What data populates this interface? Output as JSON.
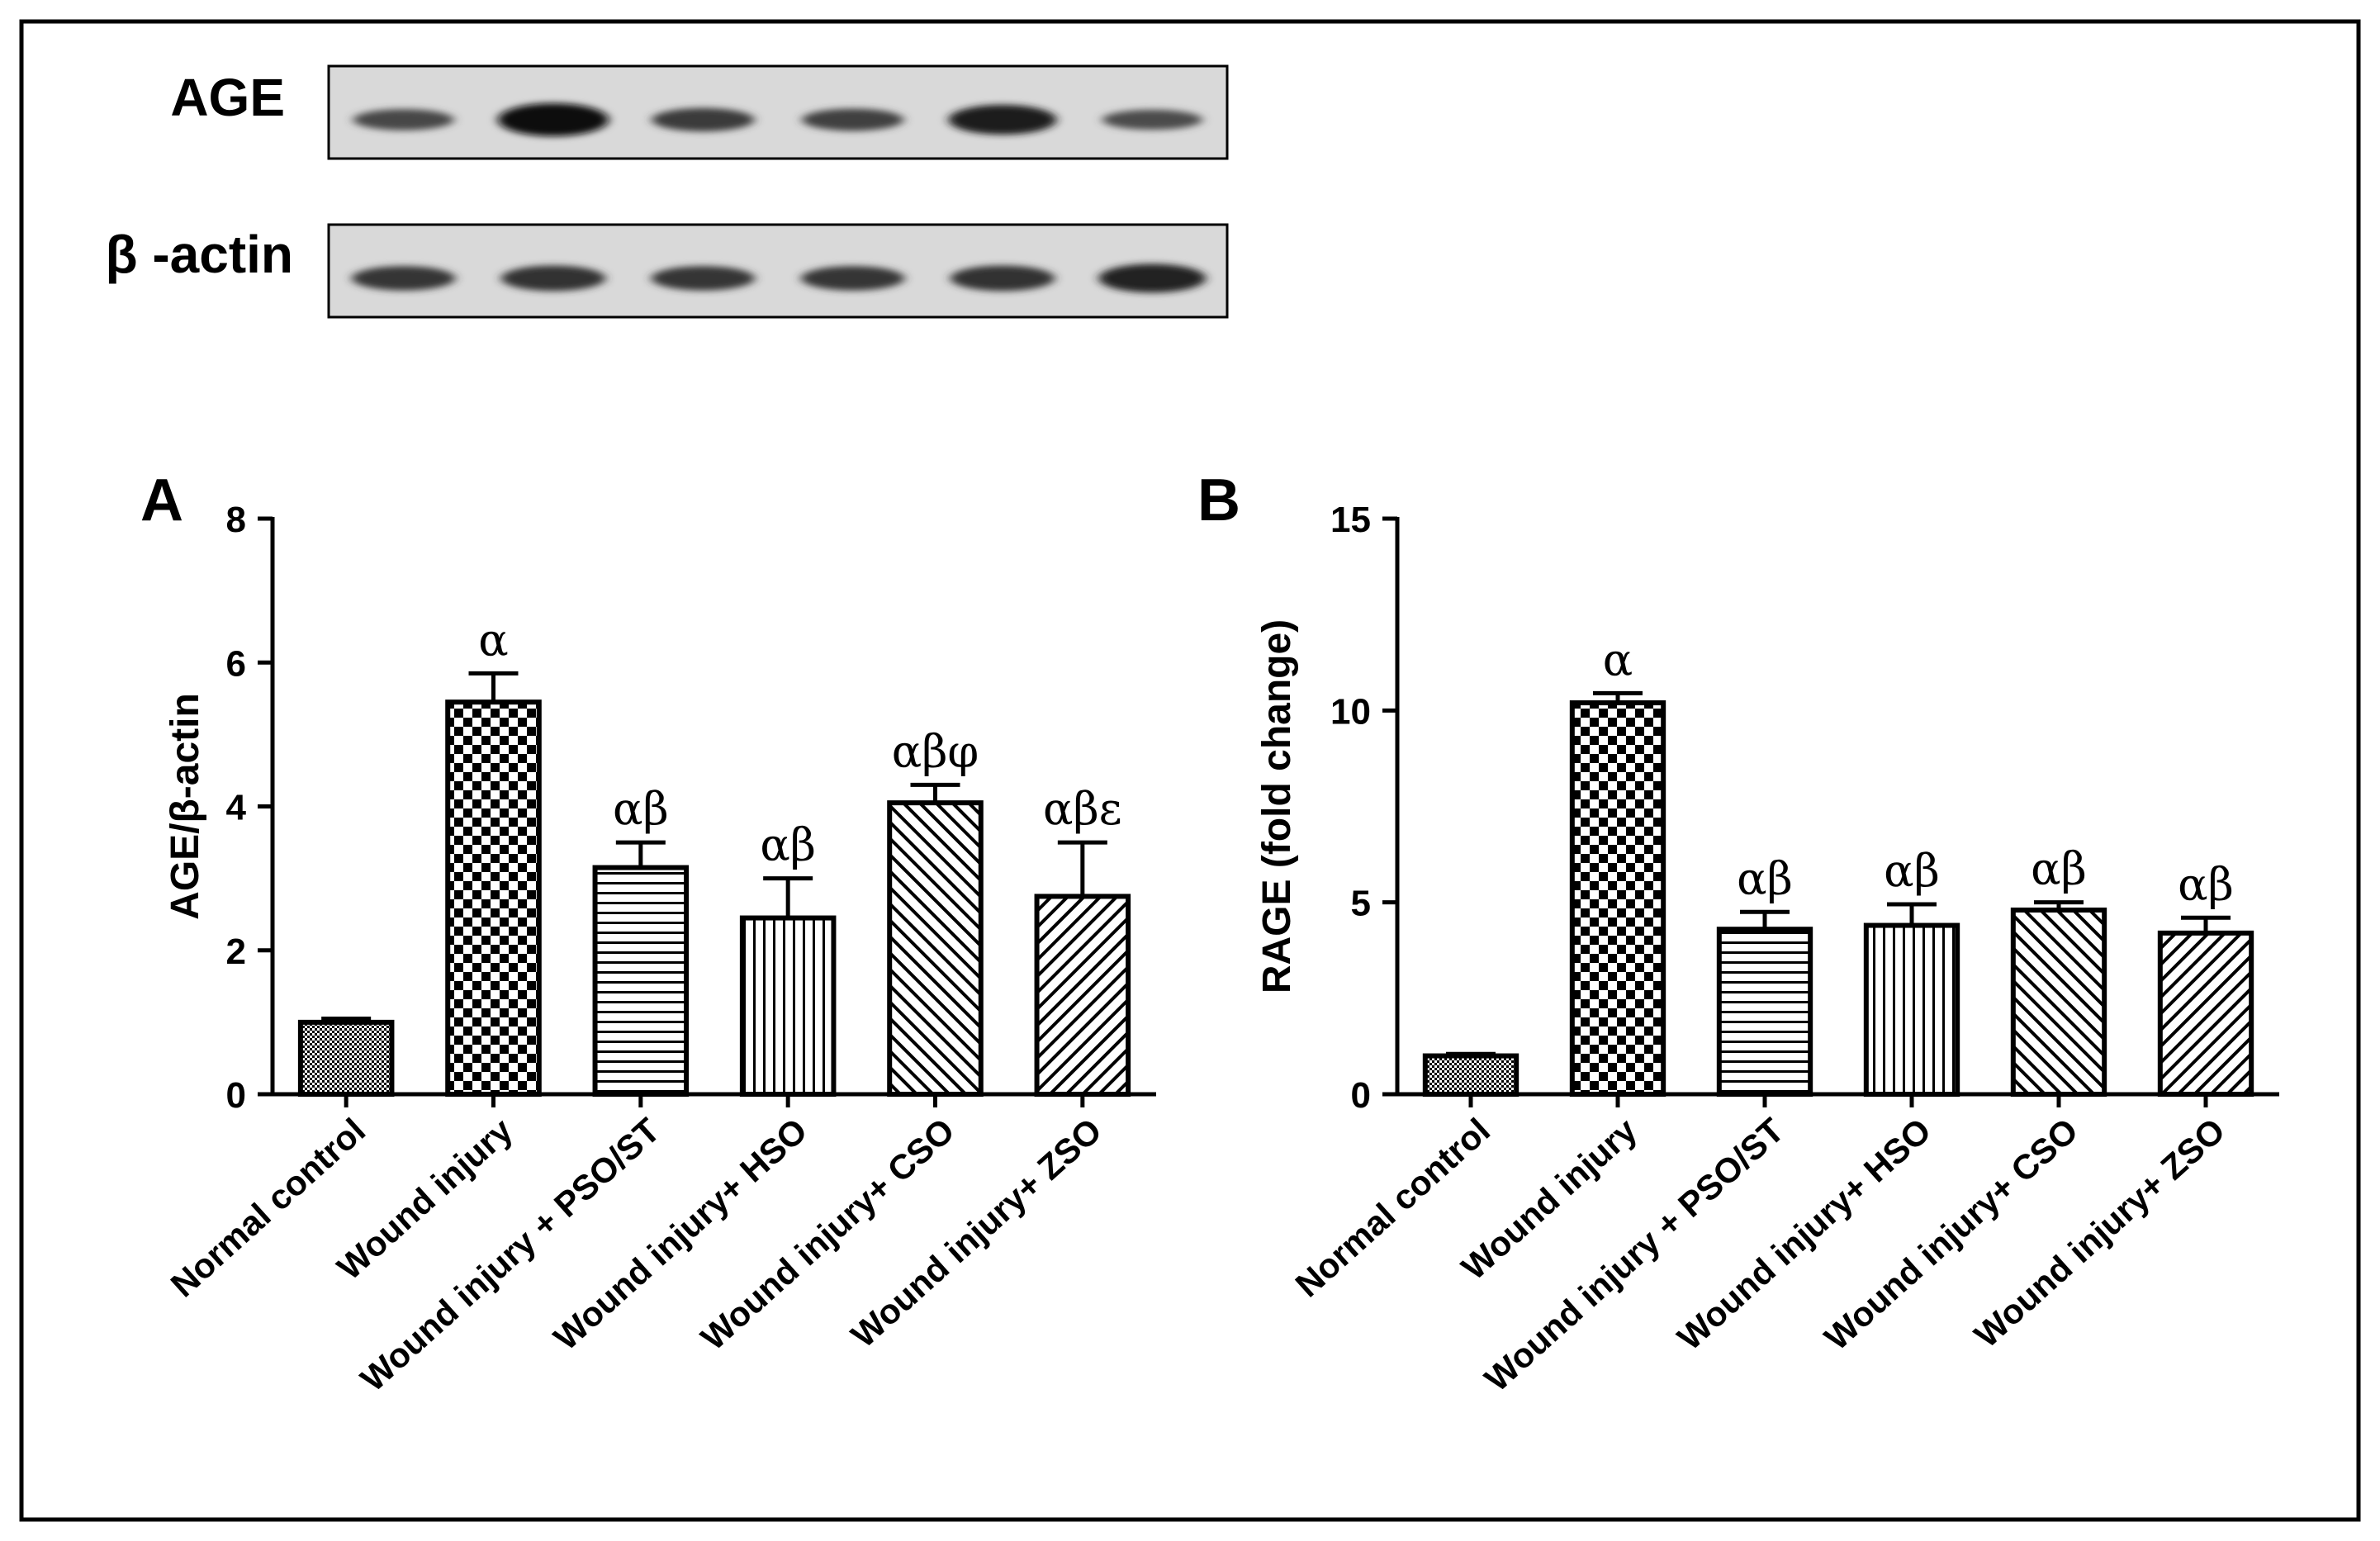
{
  "blot": {
    "rows": [
      {
        "label": "AGE",
        "intensities": [
          0.45,
          1.0,
          0.55,
          0.5,
          0.85,
          0.4
        ]
      },
      {
        "label": "β -actin",
        "intensities": [
          0.6,
          0.65,
          0.6,
          0.6,
          0.65,
          0.8
        ]
      }
    ]
  },
  "chart_data": [
    {
      "type": "bar",
      "panel": "A",
      "categories": [
        "Normal control",
        "Wound injury",
        "Wound injury  + PSO/ST",
        "Wound injury+ HSO",
        "Wound injury+ CSO",
        "Wound injury+ ZSO"
      ],
      "values": [
        1.0,
        5.45,
        3.15,
        2.45,
        4.05,
        2.75
      ],
      "errors": [
        0.05,
        0.4,
        0.35,
        0.55,
        0.25,
        0.75
      ],
      "significance": [
        "",
        "α",
        "αβ",
        "αβ",
        "αβφ",
        "αβε"
      ],
      "patterns": [
        "fine-grid",
        "checker",
        "horizontal",
        "vertical",
        "diagonal",
        "diagonal-back"
      ],
      "ylabel": "AGE/β-actin",
      "ylim": [
        0,
        8
      ],
      "yticks": [
        "0",
        "2",
        "4",
        "6",
        "8"
      ]
    },
    {
      "type": "bar",
      "panel": "B",
      "categories": [
        "Normal control",
        "Wound injury",
        "Wound injury  + PSO/ST",
        "Wound injury+ HSO",
        "Wound injury+ CSO",
        "Wound injury+ ZSO"
      ],
      "values": [
        1.0,
        10.2,
        4.3,
        4.4,
        4.8,
        4.2
      ],
      "errors": [
        0.05,
        0.25,
        0.45,
        0.55,
        0.2,
        0.4
      ],
      "significance": [
        "",
        "α",
        "αβ",
        "αβ",
        "αβ",
        "αβ"
      ],
      "patterns": [
        "fine-grid",
        "checker",
        "horizontal",
        "vertical",
        "diagonal",
        "diagonal-back"
      ],
      "ylabel": "RAGE (fold change)",
      "ylim": [
        0,
        15
      ],
      "yticks": [
        "0",
        "5",
        "10",
        "15"
      ]
    }
  ]
}
